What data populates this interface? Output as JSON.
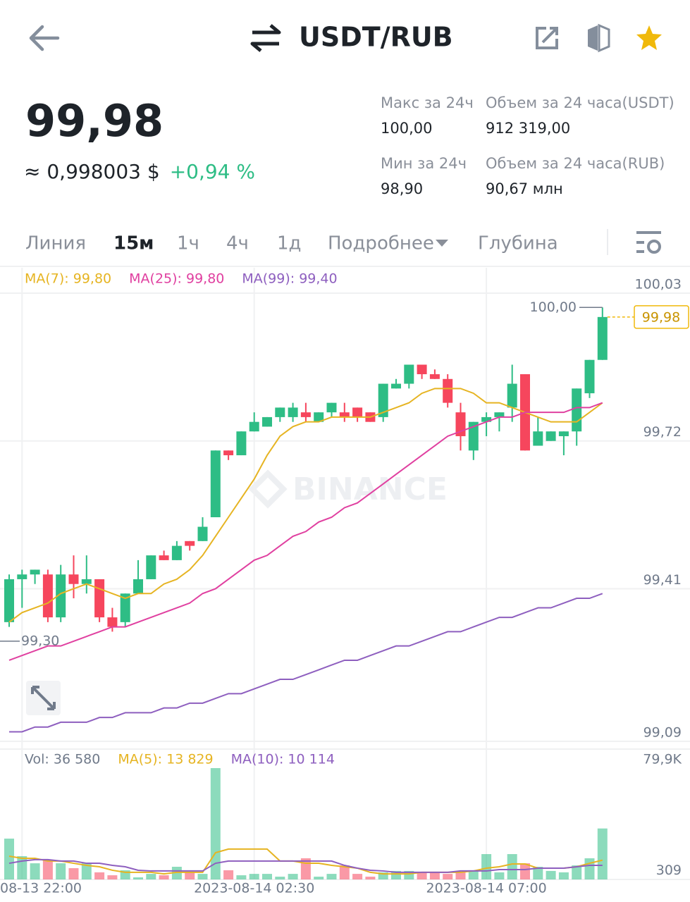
{
  "header": {
    "pair": "USDT/RUB"
  },
  "price": {
    "last": "99,98",
    "usd": "≈ 0,998003 $",
    "change": "+0,94 %"
  },
  "stats": [
    {
      "label": "Макс за 24ч",
      "value": "100,00"
    },
    {
      "label": "Объем за 24 часа(USDT)",
      "value": "912 319,00"
    },
    {
      "label": "Мин за 24ч",
      "value": "98,90"
    },
    {
      "label": "Объем за 24 часа(RUB)",
      "value": "90,67 млн"
    }
  ],
  "tabs": [
    "Линия",
    "15м",
    "1ч",
    "4ч",
    "1д",
    "Подробнее",
    "Глубина"
  ],
  "chart_data": [
    {
      "type": "candlestick",
      "watermark": "BINANCE",
      "categories": [
        null,
        "08-13 22:00",
        null,
        null,
        null,
        null,
        null,
        null,
        null,
        null,
        null,
        null,
        null,
        null,
        null,
        null,
        null,
        null,
        null,
        "2023-08-14 02:30",
        null,
        null,
        null,
        null,
        null,
        null,
        null,
        null,
        null,
        null,
        null,
        null,
        null,
        null,
        null,
        null,
        null,
        "2023-08-14 07:00",
        null,
        null,
        null,
        null,
        null,
        null,
        null,
        null,
        null
      ],
      "open": [
        99.34,
        99.43,
        99.44,
        99.44,
        99.35,
        99.44,
        99.42,
        99.43,
        99.35,
        99.34,
        99.4,
        99.43,
        99.48,
        99.47,
        99.51,
        99.51,
        99.56,
        99.7,
        99.69,
        99.74,
        99.75,
        99.77,
        99.77,
        99.78,
        99.76,
        99.78,
        99.78,
        99.79,
        99.78,
        99.77,
        99.83,
        99.84,
        99.88,
        99.86,
        99.85,
        99.78,
        99.7,
        99.76,
        99.77,
        99.79,
        99.86,
        99.71,
        99.72,
        99.73,
        99.74,
        99.82,
        99.89
      ],
      "high": [
        99.44,
        99.45,
        99.45,
        99.45,
        99.46,
        99.48,
        99.48,
        99.43,
        99.37,
        99.4,
        99.47,
        99.48,
        99.49,
        99.51,
        99.51,
        99.56,
        99.7,
        99.7,
        99.74,
        99.78,
        99.77,
        99.79,
        99.8,
        99.8,
        99.78,
        99.8,
        99.8,
        99.79,
        99.78,
        99.84,
        99.85,
        99.88,
        99.88,
        99.87,
        99.86,
        99.8,
        99.76,
        99.78,
        99.78,
        99.88,
        99.86,
        99.77,
        99.74,
        99.74,
        99.83,
        99.89,
        100.0
      ],
      "low": [
        99.33,
        99.37,
        99.42,
        99.34,
        99.34,
        99.39,
        99.4,
        99.34,
        99.32,
        99.33,
        99.4,
        99.43,
        99.47,
        99.47,
        99.49,
        99.51,
        99.56,
        99.68,
        99.69,
        99.74,
        99.75,
        99.76,
        99.76,
        99.76,
        99.76,
        99.77,
        99.76,
        99.76,
        99.76,
        99.76,
        99.83,
        99.83,
        99.85,
        99.85,
        99.79,
        99.7,
        99.68,
        99.73,
        99.74,
        99.76,
        99.7,
        99.71,
        99.72,
        99.69,
        99.71,
        99.81,
        99.89
      ],
      "close": [
        99.43,
        99.44,
        99.45,
        99.35,
        99.44,
        99.42,
        99.43,
        99.35,
        99.33,
        99.4,
        99.43,
        99.48,
        99.47,
        99.5,
        99.5,
        99.54,
        99.7,
        99.69,
        99.74,
        99.76,
        99.77,
        99.79,
        99.79,
        99.77,
        99.78,
        99.8,
        99.77,
        99.77,
        99.76,
        99.84,
        99.84,
        99.88,
        99.86,
        99.85,
        99.8,
        99.73,
        99.76,
        99.77,
        99.78,
        99.84,
        99.7,
        99.74,
        99.74,
        99.74,
        99.83,
        99.89,
        99.98
      ],
      "up_color": "#2ebd85",
      "down_color": "#f6465d",
      "ylim": [
        99.09,
        100.03
      ],
      "yticks": [
        {
          "value": 100.03,
          "label": "100,03"
        },
        {
          "value": 99.72,
          "label": "99,72"
        },
        {
          "value": 99.41,
          "label": "99,41"
        },
        {
          "value": 99.09,
          "label": "99,09"
        }
      ],
      "grid": true,
      "series": [
        {
          "name": "MA(7): 99,80",
          "color": "#e6b422",
          "values": [
            99.34,
            99.36,
            99.37,
            99.38,
            99.4,
            99.41,
            99.42,
            99.41,
            99.4,
            99.39,
            99.4,
            99.4,
            99.42,
            99.43,
            99.45,
            99.48,
            99.52,
            99.56,
            99.6,
            99.64,
            99.69,
            99.73,
            99.75,
            99.76,
            99.76,
            99.77,
            99.77,
            99.77,
            99.77,
            99.78,
            99.79,
            99.8,
            99.82,
            99.83,
            99.83,
            99.83,
            99.82,
            99.8,
            99.8,
            99.79,
            99.78,
            99.77,
            99.76,
            99.76,
            99.76,
            99.78,
            99.8
          ]
        },
        {
          "name": "MA(25): 99,80",
          "color": "#e040a0",
          "values": [
            99.26,
            99.27,
            99.28,
            99.29,
            99.29,
            99.3,
            99.31,
            99.32,
            99.33,
            99.33,
            99.34,
            99.35,
            99.36,
            99.37,
            99.38,
            99.4,
            99.41,
            99.43,
            99.45,
            99.47,
            99.48,
            99.5,
            99.52,
            99.53,
            99.55,
            99.56,
            99.58,
            99.59,
            99.61,
            99.63,
            99.65,
            99.67,
            99.69,
            99.71,
            99.73,
            99.74,
            99.75,
            99.76,
            99.77,
            99.77,
            99.78,
            99.78,
            99.78,
            99.78,
            99.79,
            99.79,
            99.8
          ]
        },
        {
          "name": "MA(99): 99,40",
          "color": "#8e5fbf",
          "values": [
            99.11,
            99.11,
            99.12,
            99.12,
            99.13,
            99.13,
            99.13,
            99.14,
            99.14,
            99.15,
            99.15,
            99.15,
            99.16,
            99.16,
            99.17,
            99.17,
            99.18,
            99.19,
            99.19,
            99.2,
            99.21,
            99.22,
            99.22,
            99.23,
            99.24,
            99.25,
            99.26,
            99.26,
            99.27,
            99.28,
            99.29,
            99.29,
            99.3,
            99.31,
            99.32,
            99.32,
            99.33,
            99.34,
            99.35,
            99.35,
            99.36,
            99.37,
            99.37,
            99.38,
            99.39,
            99.39,
            99.4
          ]
        }
      ],
      "annotations": [
        {
          "value": 100.0,
          "label": "100,00"
        },
        {
          "value": 99.3,
          "label": "99,30"
        }
      ],
      "last_price": {
        "value": 99.98,
        "label": "99,98"
      }
    },
    {
      "type": "bar",
      "legend": "Vol: 36 580",
      "values": [
        29300,
        16700,
        11600,
        14200,
        11600,
        8100,
        11600,
        5100,
        3000,
        6600,
        1500,
        4000,
        3000,
        9100,
        5100,
        4000,
        79900,
        6600,
        3000,
        4000,
        4000,
        2000,
        4000,
        15200,
        2000,
        4000,
        10100,
        4000,
        2000,
        5100,
        6100,
        6100,
        5100,
        5100,
        4000,
        5100,
        6600,
        18200,
        5100,
        18200,
        11600,
        9100,
        6100,
        5100,
        10100,
        15200,
        36580
      ],
      "ylim": [
        0,
        79900
      ],
      "yticks": [
        {
          "value": 79900,
          "label": "79,9K"
        },
        309
      ],
      "series": [
        {
          "name": "MA(5): 13 829",
          "color": "#e6b422",
          "values": [
            16700,
            15200,
            15200,
            13200,
            13200,
            11600,
            10100,
            9100,
            6600,
            5100,
            5100,
            5100,
            4000,
            5100,
            5100,
            5100,
            19200,
            21800,
            21800,
            21800,
            21800,
            13200,
            13200,
            11600,
            11600,
            10100,
            9100,
            8100,
            5100,
            4000,
            4000,
            4000,
            5100,
            5100,
            5100,
            5100,
            6100,
            8100,
            9100,
            11100,
            11100,
            8100,
            8100,
            8100,
            9100,
            11600,
            13829
          ]
        },
        {
          "name": "MA(10): 10 114",
          "color": "#8e5fbf",
          "values": [
            11600,
            13200,
            14200,
            14200,
            13200,
            13200,
            11600,
            11600,
            10100,
            9100,
            6600,
            6100,
            6100,
            6100,
            6100,
            6100,
            11600,
            13200,
            13200,
            13200,
            13200,
            13200,
            13200,
            13200,
            13200,
            13200,
            10100,
            8100,
            6600,
            6100,
            5100,
            5100,
            5100,
            5100,
            5100,
            6100,
            6100,
            6100,
            7100,
            7100,
            7100,
            8100,
            8100,
            8100,
            9100,
            10100,
            10114
          ]
        }
      ]
    }
  ]
}
